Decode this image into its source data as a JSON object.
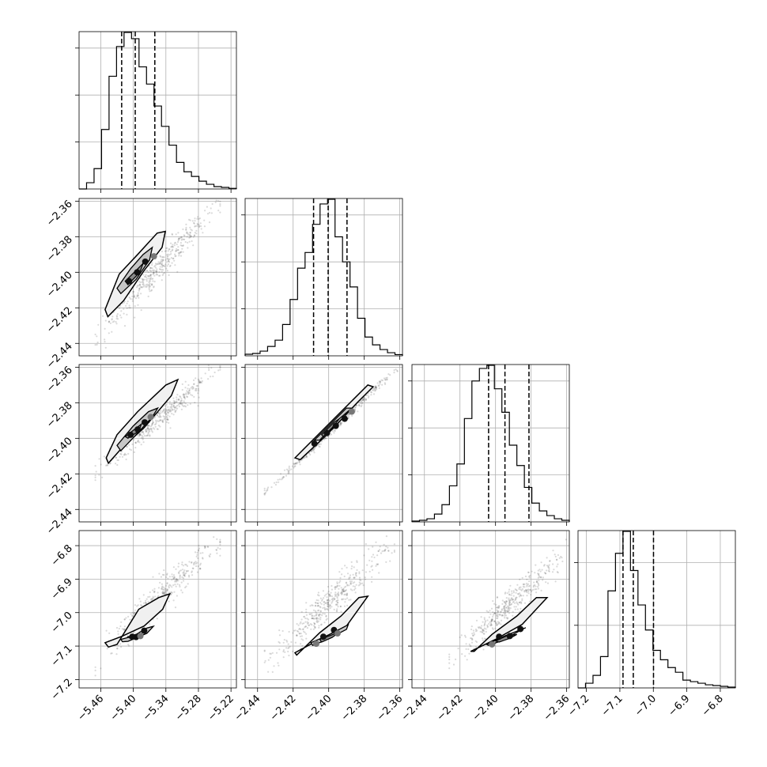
{
  "chart_data": {
    "type": "corner",
    "parameters": [
      {
        "range": [
          -5.5,
          -5.21
        ],
        "ticks": [
          -5.46,
          -5.4,
          -5.34,
          -5.28,
          -5.22
        ],
        "tick_labels": [
          "−5.46",
          "−5.40",
          "−5.34",
          "−5.28",
          "−5.22"
        ],
        "quantiles": [
          -5.4215,
          -5.3965,
          -5.3604
        ]
      },
      {
        "range": [
          -2.447,
          -2.3585
        ],
        "ticks": [
          -2.44,
          -2.42,
          -2.4,
          -2.38,
          -2.36
        ],
        "tick_labels": [
          "−2.44",
          "−2.42",
          "−2.40",
          "−2.38",
          "−2.36"
        ],
        "quantiles": [
          -2.4085,
          -2.4003,
          -2.3897
        ]
      },
      {
        "range": [
          -2.447,
          -2.3585
        ],
        "ticks": [
          -2.44,
          -2.42,
          -2.4,
          -2.38,
          -2.36
        ],
        "tick_labels": [
          "−2.44",
          "−2.42",
          "−2.40",
          "−2.38",
          "−2.36"
        ],
        "quantiles": [
          -2.4039,
          -2.3947,
          -2.3812
        ]
      },
      {
        "range": [
          -7.225,
          -6.755
        ],
        "ticks": [
          -7.2,
          -7.1,
          -7.0,
          -6.9,
          -6.8
        ],
        "tick_labels": [
          "−7.2",
          "−7.1",
          "−7.0",
          "−6.9",
          "−6.8"
        ],
        "y_tick_labels": [
          "−7.2",
          "−7.1",
          "−7.0",
          "−6.9",
          "−6.8"
        ],
        "quantiles": [
          -7.0906,
          -7.0599,
          -6.9995
        ]
      }
    ],
    "histograms": [
      [
        0,
        4,
        13,
        38,
        72,
        91,
        100,
        96,
        78,
        67,
        53,
        40,
        28,
        17,
        11,
        8,
        5,
        3,
        1.5,
        1,
        0.4
      ],
      [
        1,
        1.5,
        3,
        6,
        10,
        20,
        36,
        56,
        66,
        84,
        97,
        100,
        76,
        60,
        44,
        24,
        12,
        7,
        4,
        2,
        0.8
      ],
      [
        0.5,
        1,
        2,
        5,
        11,
        23,
        37,
        66,
        90,
        98,
        100,
        85,
        70,
        49,
        36,
        22,
        12,
        7,
        4,
        2,
        1
      ],
      [
        0,
        3,
        8,
        20,
        62,
        86,
        100,
        75,
        53,
        37,
        24,
        18,
        13,
        10,
        5,
        4,
        3,
        2,
        1.5,
        1,
        0.5
      ]
    ],
    "hist_y_ticks": [
      [
        30,
        60,
        90
      ],
      [
        30,
        60,
        90
      ],
      [
        30,
        60,
        90
      ],
      [
        40,
        80
      ]
    ],
    "pairs": [
      {
        "row": 1,
        "col": 0,
        "cloud": {
          "x": [
            -5.47,
            -5.24
          ],
          "y": [
            -2.437,
            -2.359
          ],
          "w": 0.007
        },
        "contours": [
          [
            [
              -5.452,
              -2.421
            ],
            [
              -5.426,
              -2.401
            ],
            [
              -5.392,
              -2.39
            ],
            [
              -5.356,
              -2.378
            ],
            [
              -5.341,
              -2.377
            ],
            [
              -5.347,
              -2.386
            ],
            [
              -5.38,
              -2.399
            ],
            [
              -5.418,
              -2.416
            ],
            [
              -5.447,
              -2.425
            ]
          ],
          [
            [
              -5.43,
              -2.409
            ],
            [
              -5.405,
              -2.398
            ],
            [
              -5.382,
              -2.39
            ],
            [
              -5.365,
              -2.386
            ],
            [
              -5.37,
              -2.393
            ],
            [
              -5.395,
              -2.404
            ],
            [
              -5.423,
              -2.412
            ]
          ],
          [
            [
              -5.415,
              -2.405
            ],
            [
              -5.395,
              -2.399
            ],
            [
              -5.382,
              -2.395
            ],
            [
              -5.388,
              -2.4
            ],
            [
              -5.41,
              -2.407
            ]
          ]
        ],
        "dots": [
          [
            -5.408,
            -2.405
          ],
          [
            -5.393,
            -2.4
          ],
          [
            -5.378,
            -2.394
          ]
        ],
        "gdots": [
          [
            -5.362,
            -2.391
          ]
        ]
      },
      {
        "row": 2,
        "col": 0,
        "cloud": {
          "x": [
            -5.47,
            -5.24
          ],
          "y": [
            -2.418,
            -2.36
          ],
          "w": 0.006
        },
        "contours": [
          [
            [
              -5.45,
              -2.411
            ],
            [
              -5.43,
              -2.398
            ],
            [
              -5.392,
              -2.385
            ],
            [
              -5.34,
              -2.37
            ],
            [
              -5.318,
              -2.367
            ],
            [
              -5.33,
              -2.376
            ],
            [
              -5.38,
              -2.394
            ],
            [
              -5.42,
              -2.405
            ],
            [
              -5.446,
              -2.414
            ]
          ],
          [
            [
              -5.43,
              -2.404
            ],
            [
              -5.4,
              -2.393
            ],
            [
              -5.372,
              -2.385
            ],
            [
              -5.355,
              -2.383
            ],
            [
              -5.365,
              -2.388
            ],
            [
              -5.395,
              -2.398
            ],
            [
              -5.423,
              -2.407
            ]
          ],
          [
            [
              -5.415,
              -2.399
            ],
            [
              -5.398,
              -2.395
            ],
            [
              -5.385,
              -2.392
            ],
            [
              -5.39,
              -2.396
            ],
            [
              -5.41,
              -2.4
            ]
          ]
        ],
        "dots": [
          [
            -5.405,
            -2.398
          ],
          [
            -5.392,
            -2.395
          ],
          [
            -5.379,
            -2.391
          ]
        ],
        "gdots": [
          [
            -5.368,
            -2.388
          ]
        ]
      },
      {
        "row": 2,
        "col": 1,
        "cloud": {
          "x": [
            -2.436,
            -2.358
          ],
          "y": [
            -2.431,
            -2.357
          ],
          "w": 0.002
        },
        "contours": [
          [
            [
              -2.419,
              -2.411
            ],
            [
              -2.405,
              -2.397
            ],
            [
              -2.386,
              -2.378
            ],
            [
              -2.378,
              -2.37
            ],
            [
              -2.375,
              -2.371
            ],
            [
              -2.384,
              -2.38
            ],
            [
              -2.401,
              -2.398
            ],
            [
              -2.416,
              -2.412
            ]
          ],
          [
            [
              -2.408,
              -2.401
            ],
            [
              -2.398,
              -2.391
            ],
            [
              -2.39,
              -2.383
            ],
            [
              -2.387,
              -2.383
            ],
            [
              -2.394,
              -2.389
            ],
            [
              -2.405,
              -2.401
            ]
          ],
          [
            [
              -2.404,
              -2.398
            ],
            [
              -2.397,
              -2.391
            ],
            [
              -2.394,
              -2.389
            ],
            [
              -2.398,
              -2.394
            ],
            [
              -2.403,
              -2.399
            ]
          ]
        ],
        "dots": [
          [
            -2.408,
            -2.403
          ],
          [
            -2.401,
            -2.397
          ],
          [
            -2.396,
            -2.393
          ],
          [
            -2.391,
            -2.389
          ]
        ],
        "gdots": [
          [
            -2.387,
            -2.385
          ]
        ]
      },
      {
        "row": 3,
        "col": 0,
        "cloud": {
          "x": [
            -5.47,
            -5.24
          ],
          "y": [
            -7.14,
            -6.78
          ],
          "w": 0.04
        },
        "contours": [
          [
            [
              -5.452,
              -7.09
            ],
            [
              -5.42,
              -7.07
            ],
            [
              -5.38,
              -7.04
            ],
            [
              -5.346,
              -6.99
            ],
            [
              -5.333,
              -6.944
            ],
            [
              -5.353,
              -6.955
            ],
            [
              -5.39,
              -6.99
            ],
            [
              -5.43,
              -7.095
            ],
            [
              -5.446,
              -7.103
            ]
          ],
          [
            [
              -5.423,
              -7.08
            ],
            [
              -5.4,
              -7.07
            ],
            [
              -5.375,
              -7.046
            ],
            [
              -5.363,
              -7.041
            ],
            [
              -5.375,
              -7.062
            ],
            [
              -5.41,
              -7.086
            ],
            [
              -5.42,
              -7.087
            ]
          ],
          [
            [
              -5.41,
              -7.072
            ],
            [
              -5.395,
              -7.067
            ],
            [
              -5.385,
              -7.063
            ],
            [
              -5.39,
              -7.075
            ],
            [
              -5.405,
              -7.078
            ]
          ]
        ],
        "dots": [
          [
            -5.402,
            -7.072
          ],
          [
            -5.395,
            -7.073
          ],
          [
            -5.38,
            -7.054
          ]
        ],
        "gdots": [
          [
            -5.387,
            -7.07
          ]
        ]
      },
      {
        "row": 3,
        "col": 1,
        "cloud": {
          "x": [
            -2.436,
            -2.363
          ],
          "y": [
            -7.14,
            -6.8
          ],
          "w": 0.04
        },
        "contours": [
          [
            [
              -2.419,
              -7.12
            ],
            [
              -2.405,
              -7.08
            ],
            [
              -2.39,
              -7.04
            ],
            [
              -2.378,
              -6.951
            ],
            [
              -2.383,
              -6.955
            ],
            [
              -2.393,
              -7.01
            ],
            [
              -2.405,
              -7.06
            ],
            [
              -2.418,
              -7.127
            ]
          ],
          [
            [
              -2.41,
              -7.09
            ],
            [
              -2.4,
              -7.067
            ],
            [
              -2.389,
              -7.036
            ],
            [
              -2.39,
              -7.05
            ],
            [
              -2.402,
              -7.083
            ],
            [
              -2.409,
              -7.098
            ]
          ],
          [
            [
              -2.405,
              -7.08
            ],
            [
              -2.4,
              -7.07
            ],
            [
              -2.394,
              -7.058
            ],
            [
              -2.398,
              -7.074
            ],
            [
              -2.404,
              -7.088
            ]
          ]
        ],
        "dots": [
          [
            -2.403,
            -7.072
          ],
          [
            -2.397,
            -7.052
          ]
        ],
        "gdots": [
          [
            -2.407,
            -7.093
          ],
          [
            -2.395,
            -7.062
          ]
        ]
      },
      {
        "row": 3,
        "col": 2,
        "cloud": {
          "x": [
            -2.426,
            -2.356
          ],
          "y": [
            -7.14,
            -6.8
          ],
          "w": 0.04
        },
        "contours": [
          [
            [
              -2.414,
              -7.116
            ],
            [
              -2.4,
              -7.08
            ],
            [
              -2.385,
              -7.035
            ],
            [
              -2.371,
              -6.955
            ],
            [
              -2.377,
              -6.955
            ],
            [
              -2.388,
              -7.01
            ],
            [
              -2.402,
              -7.065
            ],
            [
              -2.412,
              -7.116
            ]
          ],
          [
            [
              -2.405,
              -7.095
            ],
            [
              -2.395,
              -7.07
            ],
            [
              -2.383,
              -7.045
            ],
            [
              -2.385,
              -7.05
            ],
            [
              -2.396,
              -7.083
            ],
            [
              -2.404,
              -7.098
            ]
          ],
          [
            [
              -2.4,
              -7.085
            ],
            [
              -2.394,
              -7.07
            ],
            [
              -2.388,
              -7.065
            ],
            [
              -2.392,
              -7.077
            ],
            [
              -2.398,
              -7.088
            ]
          ]
        ],
        "dots": [
          [
            -2.398,
            -7.072
          ],
          [
            -2.392,
            -7.07
          ],
          [
            -2.386,
            -7.049
          ]
        ],
        "gdots": [
          [
            -2.402,
            -7.095
          ]
        ]
      }
    ]
  }
}
